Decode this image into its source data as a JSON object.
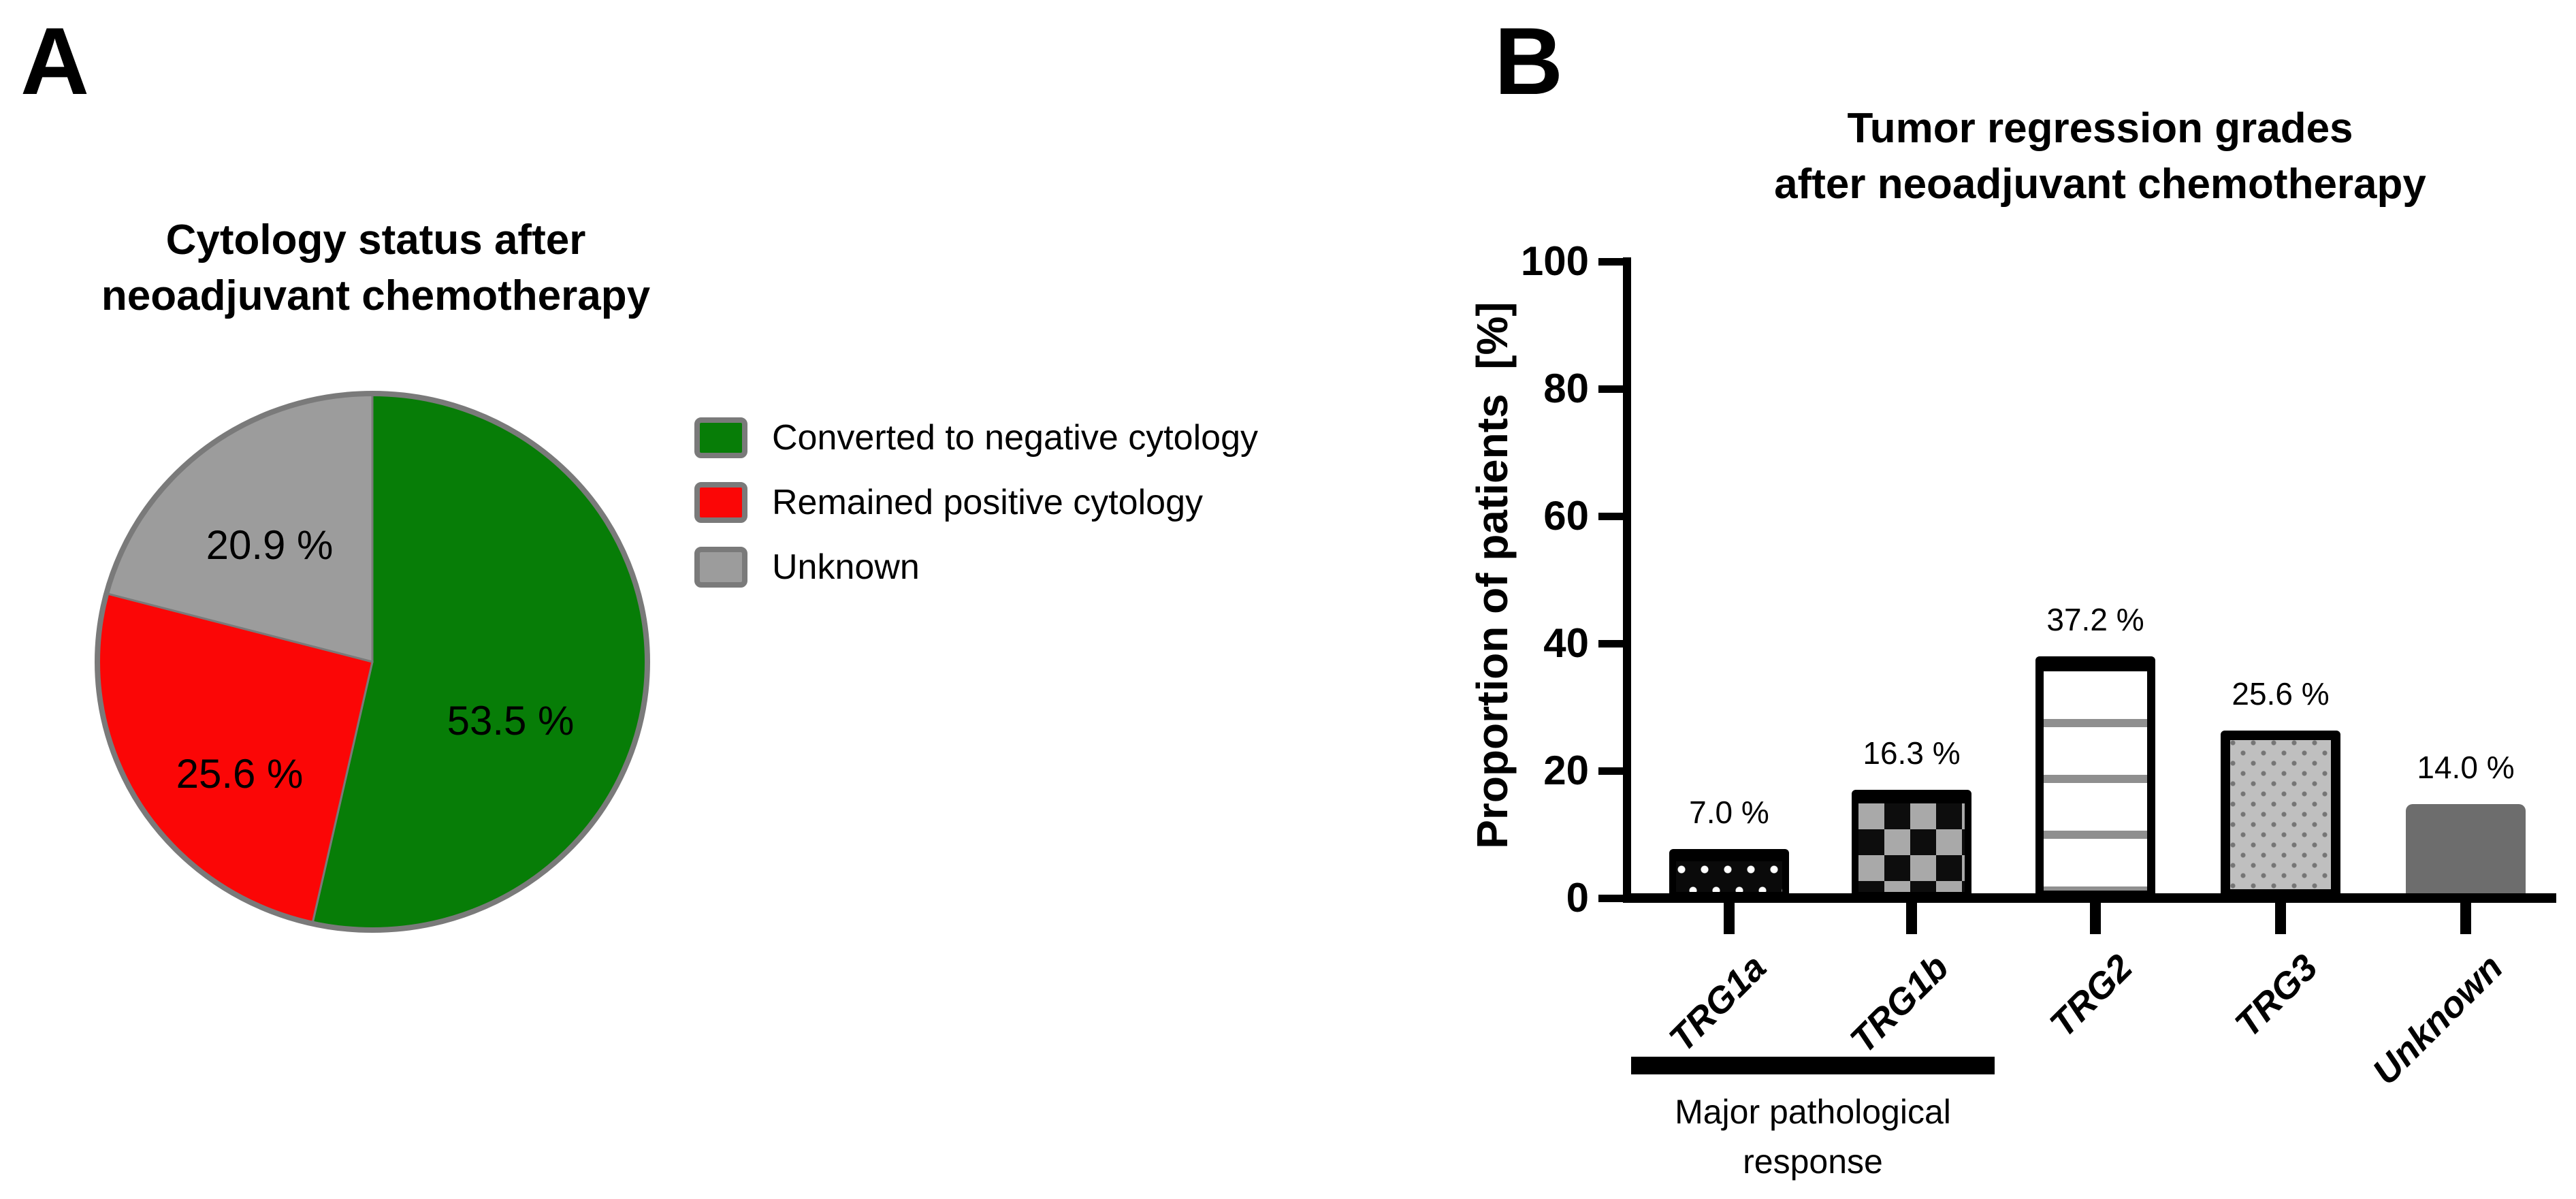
{
  "figure": {
    "panel_a": {
      "label": "A",
      "title_line1": "Cytology status after",
      "title_line2": "neoadjuvant chemotherapy"
    },
    "panel_b": {
      "label": "B",
      "title_line1": "Tumor regression grades",
      "title_line2": "after neoadjuvant chemotherapy"
    }
  },
  "colors": {
    "pie_green": "#077d07",
    "pie_red": "#fb0606",
    "pie_gray": "#9c9c9c",
    "pie_rim_gray": "#7a7a7a",
    "unknown_bar_gray": "#6d6d6d",
    "axis_black": "#000000",
    "background": "#ffffff"
  },
  "chart_data": [
    {
      "type": "pie",
      "title": "Cytology status after neoadjuvant chemotherapy",
      "labels": [
        "Converted to negative cytology",
        "Remained positive cytology",
        "Unknown"
      ],
      "values": [
        53.5,
        25.6,
        20.9
      ],
      "slice_labels": [
        "53.5 %",
        "25.6 %",
        "20.9 %"
      ],
      "colors": [
        "#077d07",
        "#fb0606",
        "#9c9c9c"
      ],
      "start_angle_deg_from_12_oclock": 0,
      "direction": "clockwise",
      "legend_position": "right"
    },
    {
      "type": "bar",
      "title": "Tumor regression grades after neoadjuvant chemotherapy",
      "categories": [
        "TRG1a",
        "TRG1b",
        "TRG2",
        "TRG3",
        "Unknown"
      ],
      "values": [
        7.0,
        16.3,
        37.2,
        25.6,
        14.0
      ],
      "value_labels": [
        "7.0 %",
        "16.3 %",
        "37.2 %",
        "25.6 %",
        "14.0 %"
      ],
      "patterns": [
        "white-dots-on-black",
        "checkerboard",
        "horizontal-stripes",
        "speckled-light-gray",
        "solid-dark-gray"
      ],
      "xlabel": "",
      "ylabel": "Proportion of patients  [%]",
      "ylim": [
        0,
        100
      ],
      "yticks": [
        0,
        20,
        40,
        60,
        80,
        100
      ],
      "grid": false,
      "legend_position": "none",
      "annotation": {
        "bracket_categories": [
          "TRG1a",
          "TRG1b"
        ],
        "label": "Major pathological response",
        "label_line1": "Major pathological",
        "label_line2": "response"
      }
    }
  ]
}
